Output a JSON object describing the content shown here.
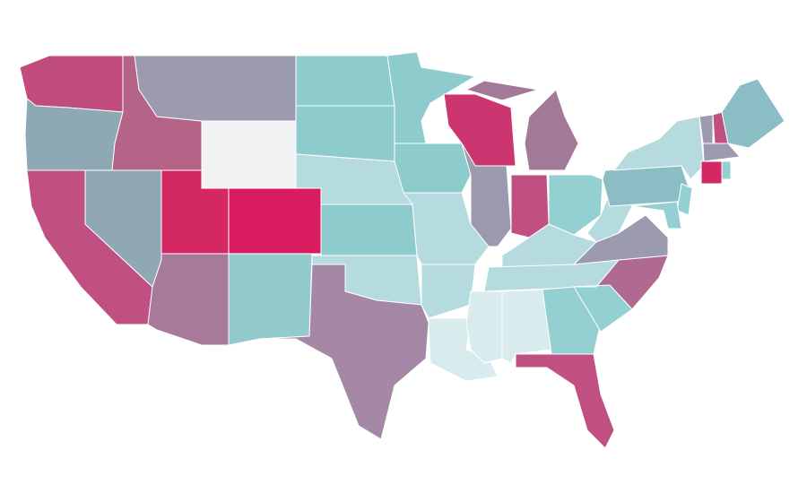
{
  "map": {
    "type": "choropleth",
    "regions": [
      {
        "color": "#c04d7e"
      },
      {
        "color": "#8fa9b4"
      },
      {
        "color": "#c04f82"
      },
      {
        "color": "#90a8b3"
      },
      {
        "color": "#b66388"
      },
      {
        "color": "#9c9aae"
      },
      {
        "color": "#f1f2f4"
      },
      {
        "color": "#d42864"
      },
      {
        "color": "#d81c5f"
      },
      {
        "color": "#a67a98"
      },
      {
        "color": "#93cbcd"
      },
      {
        "color": "#8ecbcd"
      },
      {
        "color": "#8ecbcd"
      },
      {
        "color": "#b5dbde"
      },
      {
        "color": "#8ecbcd"
      },
      {
        "color": "#b5dbde"
      },
      {
        "color": "#a488a5"
      },
      {
        "color": "#8ecbcd"
      },
      {
        "color": "#8ecbcd"
      },
      {
        "color": "#b5dbde"
      },
      {
        "color": "#b5dbde"
      },
      {
        "color": "#d8ecee"
      },
      {
        "color": "#cc3570"
      },
      {
        "color": "#9c9aae"
      },
      {
        "color": "#a27a97"
      },
      {
        "color": "#a27a97"
      },
      {
        "color": "#c04f82"
      },
      {
        "color": "#94cfd1"
      },
      {
        "color": "#b5dbde"
      },
      {
        "color": "#b5dbde"
      },
      {
        "color": "#d8ecee"
      },
      {
        "color": "#d8ecee"
      },
      {
        "color": "#94cfd1"
      },
      {
        "color": "#c04f82"
      },
      {
        "color": "#94cfd1"
      },
      {
        "color": "#b06a91"
      },
      {
        "color": "#9c9aae"
      },
      {
        "color": "#b5dbde"
      },
      {
        "color": "#8bbdc4"
      },
      {
        "color": "#b5dbde"
      },
      {
        "color": "#94cfd1"
      },
      {
        "color": "#94cfd1"
      },
      {
        "color": "#9c9aae"
      },
      {
        "color": "#c04f82"
      },
      {
        "color": "#9c9aae"
      },
      {
        "color": "#d42864"
      },
      {
        "color": "#94cfd1"
      },
      {
        "color": "#8bbdc4"
      }
    ]
  }
}
